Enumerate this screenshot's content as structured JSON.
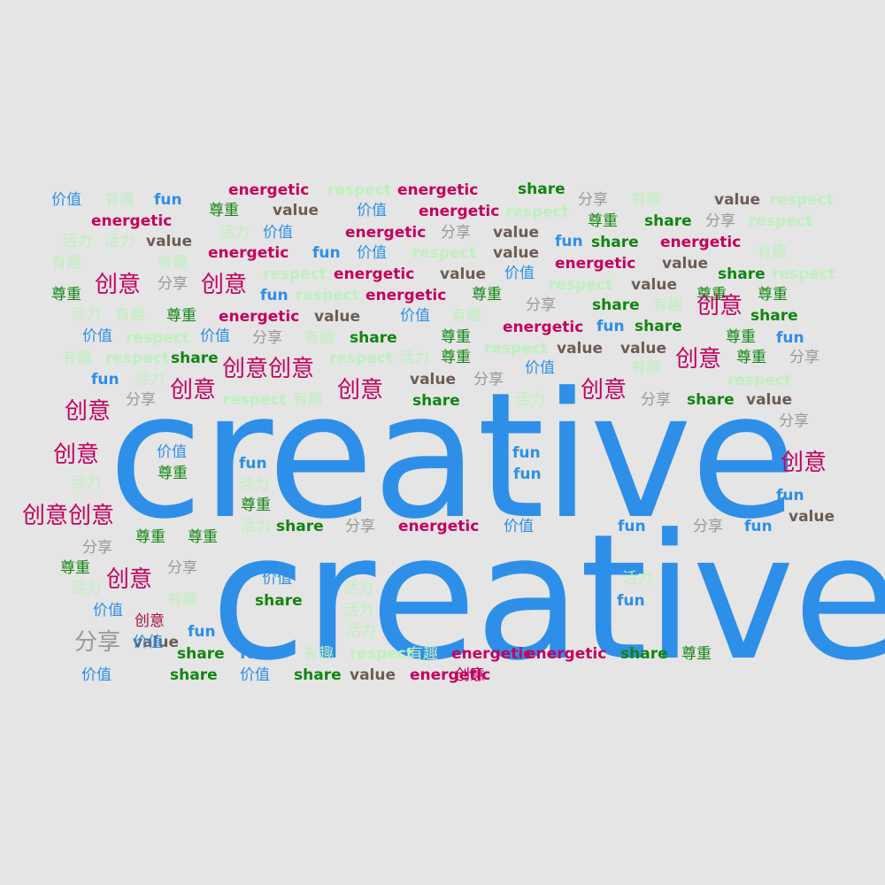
{
  "colors": {
    "background": "#e5e5e5",
    "blue": "#2e8fe8",
    "magenta": "#c4005e",
    "green": "#118511",
    "brown": "#6b5d55",
    "gray": "#999999",
    "mint": "#bdf0bd"
  },
  "words": [
    {
      "text": "creative",
      "color": "blue"
    },
    {
      "text": "creative",
      "color": "blue"
    },
    {
      "text": "价值",
      "color": "blue"
    },
    {
      "text": "有趣",
      "color": "mint"
    },
    {
      "text": "fun",
      "color": "blue"
    },
    {
      "text": "energetic",
      "color": "magenta"
    },
    {
      "text": "respect",
      "color": "mint"
    },
    {
      "text": "energetic",
      "color": "magenta"
    },
    {
      "text": "share",
      "color": "green"
    },
    {
      "text": "分享",
      "color": "gray"
    },
    {
      "text": "有趣",
      "color": "mint"
    },
    {
      "text": "value",
      "color": "brown"
    },
    {
      "text": "respect",
      "color": "mint"
    },
    {
      "text": "energetic",
      "color": "magenta"
    },
    {
      "text": "尊重",
      "color": "green"
    },
    {
      "text": "value",
      "color": "brown"
    },
    {
      "text": "价值",
      "color": "blue"
    },
    {
      "text": "energetic",
      "color": "magenta"
    },
    {
      "text": "respect",
      "color": "mint"
    },
    {
      "text": "尊重",
      "color": "green"
    },
    {
      "text": "share",
      "color": "green"
    },
    {
      "text": "分享",
      "color": "gray"
    },
    {
      "text": "respect",
      "color": "mint"
    },
    {
      "text": "活力",
      "color": "mint"
    },
    {
      "text": "活力",
      "color": "mint"
    },
    {
      "text": "value",
      "color": "brown"
    },
    {
      "text": "活力",
      "color": "mint"
    },
    {
      "text": "价值",
      "color": "blue"
    },
    {
      "text": "energetic",
      "color": "magenta"
    },
    {
      "text": "分享",
      "color": "gray"
    },
    {
      "text": "value",
      "color": "brown"
    },
    {
      "text": "fun",
      "color": "blue"
    },
    {
      "text": "share",
      "color": "green"
    },
    {
      "text": "energetic",
      "color": "magenta"
    },
    {
      "text": "有趣",
      "color": "mint"
    },
    {
      "text": "有趣",
      "color": "mint"
    },
    {
      "text": "有趣",
      "color": "mint"
    },
    {
      "text": "energetic",
      "color": "magenta"
    },
    {
      "text": "fun",
      "color": "blue"
    },
    {
      "text": "价值",
      "color": "blue"
    },
    {
      "text": "respect",
      "color": "mint"
    },
    {
      "text": "value",
      "color": "brown"
    },
    {
      "text": "energetic",
      "color": "magenta"
    },
    {
      "text": "value",
      "color": "brown"
    },
    {
      "text": "尊重",
      "color": "green"
    },
    {
      "text": "创意",
      "color": "magenta"
    },
    {
      "text": "分享",
      "color": "gray"
    },
    {
      "text": "创意",
      "color": "magenta"
    },
    {
      "text": "respect",
      "color": "mint"
    },
    {
      "text": "energetic",
      "color": "magenta"
    },
    {
      "text": "value",
      "color": "brown"
    },
    {
      "text": "价值",
      "color": "blue"
    },
    {
      "text": "share",
      "color": "green"
    },
    {
      "text": "respect",
      "color": "mint"
    },
    {
      "text": "fun",
      "color": "blue"
    },
    {
      "text": "respect",
      "color": "mint"
    },
    {
      "text": "energetic",
      "color": "magenta"
    },
    {
      "text": "尊重",
      "color": "green"
    },
    {
      "text": "respect",
      "color": "mint"
    },
    {
      "text": "value",
      "color": "brown"
    },
    {
      "text": "尊重",
      "color": "green"
    },
    {
      "text": "尊重",
      "color": "green"
    },
    {
      "text": "活力",
      "color": "mint"
    },
    {
      "text": "有趣",
      "color": "mint"
    },
    {
      "text": "尊重",
      "color": "green"
    },
    {
      "text": "energetic",
      "color": "magenta"
    },
    {
      "text": "value",
      "color": "brown"
    },
    {
      "text": "价值",
      "color": "blue"
    },
    {
      "text": "有趣",
      "color": "mint"
    },
    {
      "text": "分享",
      "color": "gray"
    },
    {
      "text": "share",
      "color": "green"
    },
    {
      "text": "有趣",
      "color": "mint"
    },
    {
      "text": "创意",
      "color": "magenta"
    },
    {
      "text": "share",
      "color": "green"
    },
    {
      "text": "价值",
      "color": "blue"
    },
    {
      "text": "respect",
      "color": "mint"
    },
    {
      "text": "价值",
      "color": "blue"
    },
    {
      "text": "分享",
      "color": "gray"
    },
    {
      "text": "有趣",
      "color": "mint"
    },
    {
      "text": "share",
      "color": "green"
    },
    {
      "text": "尊重",
      "color": "green"
    },
    {
      "text": "energetic",
      "color": "magenta"
    },
    {
      "text": "fun",
      "color": "blue"
    },
    {
      "text": "share",
      "color": "green"
    },
    {
      "text": "尊重",
      "color": "green"
    },
    {
      "text": "fun",
      "color": "blue"
    },
    {
      "text": "有趣",
      "color": "mint"
    },
    {
      "text": "respect",
      "color": "mint"
    },
    {
      "text": "share",
      "color": "green"
    },
    {
      "text": "创意创意",
      "color": "magenta"
    },
    {
      "text": "respect",
      "color": "mint"
    },
    {
      "text": "活力",
      "color": "mint"
    },
    {
      "text": "尊重",
      "color": "green"
    },
    {
      "text": "respect",
      "color": "mint"
    },
    {
      "text": "value",
      "color": "brown"
    },
    {
      "text": "value",
      "color": "brown"
    },
    {
      "text": "创意",
      "color": "magenta"
    },
    {
      "text": "尊重",
      "color": "green"
    },
    {
      "text": "分享",
      "color": "gray"
    },
    {
      "text": "价值",
      "color": "blue"
    },
    {
      "text": "有趣",
      "color": "mint"
    },
    {
      "text": "fun",
      "color": "blue"
    },
    {
      "text": "活力",
      "color": "mint"
    },
    {
      "text": "创意",
      "color": "magenta"
    },
    {
      "text": "创意",
      "color": "magenta"
    },
    {
      "text": "value",
      "color": "brown"
    },
    {
      "text": "分享",
      "color": "gray"
    },
    {
      "text": "创意",
      "color": "magenta"
    },
    {
      "text": "respect",
      "color": "mint"
    },
    {
      "text": "分享",
      "color": "gray"
    },
    {
      "text": "respect",
      "color": "mint"
    },
    {
      "text": "有趣",
      "color": "mint"
    },
    {
      "text": "share",
      "color": "green"
    },
    {
      "text": "活力",
      "color": "mint"
    },
    {
      "text": "分享",
      "color": "gray"
    },
    {
      "text": "share",
      "color": "green"
    },
    {
      "text": "value",
      "color": "brown"
    },
    {
      "text": "创意",
      "color": "magenta"
    },
    {
      "text": "分享",
      "color": "gray"
    },
    {
      "text": "创意",
      "color": "magenta"
    },
    {
      "text": "价值",
      "color": "blue"
    },
    {
      "text": "fun",
      "color": "blue"
    },
    {
      "text": "fun",
      "color": "blue"
    },
    {
      "text": "尊重",
      "color": "green"
    },
    {
      "text": "fun",
      "color": "blue"
    },
    {
      "text": "创意",
      "color": "magenta"
    },
    {
      "text": "活力",
      "color": "mint"
    },
    {
      "text": "活力",
      "color": "mint"
    },
    {
      "text": "fun",
      "color": "blue"
    },
    {
      "text": "创意创意",
      "color": "magenta"
    },
    {
      "text": "尊重",
      "color": "green"
    },
    {
      "text": "value",
      "color": "brown"
    },
    {
      "text": "活力",
      "color": "mint"
    },
    {
      "text": "share",
      "color": "green"
    },
    {
      "text": "分享",
      "color": "gray"
    },
    {
      "text": "energetic",
      "color": "magenta"
    },
    {
      "text": "价值",
      "color": "blue"
    },
    {
      "text": "fun",
      "color": "blue"
    },
    {
      "text": "分享",
      "color": "gray"
    },
    {
      "text": "fun",
      "color": "blue"
    },
    {
      "text": "尊重",
      "color": "green"
    },
    {
      "text": "尊重",
      "color": "green"
    },
    {
      "text": "分享",
      "color": "gray"
    },
    {
      "text": "尊重",
      "color": "green"
    },
    {
      "text": "分享",
      "color": "gray"
    },
    {
      "text": "创意",
      "color": "magenta"
    },
    {
      "text": "价值",
      "color": "blue"
    },
    {
      "text": "活力",
      "color": "mint"
    },
    {
      "text": "活力",
      "color": "mint"
    },
    {
      "text": "活力",
      "color": "mint"
    },
    {
      "text": "share",
      "color": "green"
    },
    {
      "text": "有趣",
      "color": "mint"
    },
    {
      "text": "活力",
      "color": "mint"
    },
    {
      "text": "fun",
      "color": "blue"
    },
    {
      "text": "有趣",
      "color": "mint"
    },
    {
      "text": "价值",
      "color": "blue"
    },
    {
      "text": "活力",
      "color": "mint"
    },
    {
      "text": "创意",
      "color": "magenta"
    },
    {
      "text": "fun",
      "color": "blue"
    },
    {
      "text": "value",
      "color": "brown"
    },
    {
      "text": "分享",
      "color": "gray"
    },
    {
      "text": "价值",
      "color": "blue"
    },
    {
      "text": "share",
      "color": "green"
    },
    {
      "text": "fun",
      "color": "blue"
    },
    {
      "text": "有趣",
      "color": "mint"
    },
    {
      "text": "respect",
      "color": "mint"
    },
    {
      "text": "有趣",
      "color": "mint"
    },
    {
      "text": "energetic",
      "color": "magenta"
    },
    {
      "text": "energetic",
      "color": "magenta"
    },
    {
      "text": "share",
      "color": "green"
    },
    {
      "text": "尊重",
      "color": "green"
    },
    {
      "text": "价值",
      "color": "blue"
    },
    {
      "text": "share",
      "color": "green"
    },
    {
      "text": "价值",
      "color": "blue"
    },
    {
      "text": "share",
      "color": "green"
    },
    {
      "text": "value",
      "color": "brown"
    },
    {
      "text": "energetic",
      "color": "magenta"
    },
    {
      "text": "创意",
      "color": "magenta"
    }
  ]
}
